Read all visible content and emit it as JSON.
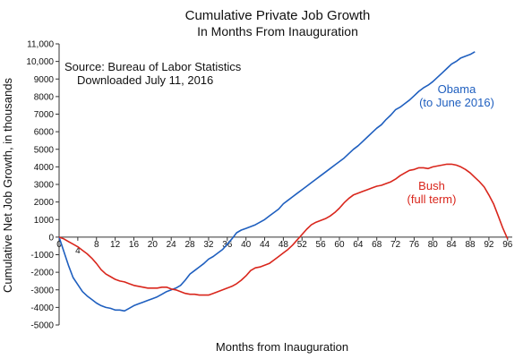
{
  "chart_data": {
    "type": "line",
    "title": "Cumulative Private Job Growth",
    "subtitle": "In Months From Inauguration",
    "xlabel": "Months from Inauguration",
    "ylabel": "Cumulative Net Job Growth, in thousands",
    "xlim": [
      0,
      97
    ],
    "ylim": [
      -5000,
      11000
    ],
    "grid": false,
    "y_ticks": [
      -5000,
      -4000,
      -3000,
      -2000,
      -1000,
      0,
      1000,
      2000,
      3000,
      4000,
      5000,
      6000,
      7000,
      8000,
      9000,
      10000,
      11000
    ],
    "y_tick_labels": [
      "-5000",
      "-4000",
      "-3000",
      "-2000",
      "-1000",
      "0",
      "1000",
      "2000",
      "3000",
      "4000",
      "5000",
      "6000",
      "7000",
      "8000",
      "9000",
      "10,000",
      "11,000"
    ],
    "x_tick_labels": [
      {
        "x": 0,
        "label": "0"
      },
      {
        "x": 4,
        "label": "4"
      },
      {
        "x": 8,
        "label": "8"
      },
      {
        "x": 12,
        "label": "12"
      },
      {
        "x": 16,
        "label": "16"
      },
      {
        "x": 20,
        "label": "20"
      },
      {
        "x": 24,
        "label": "24"
      },
      {
        "x": 28,
        "label": "28"
      },
      {
        "x": 32,
        "label": "32"
      },
      {
        "x": 36,
        "label": "36"
      },
      {
        "x": 40,
        "label": "40"
      },
      {
        "x": 44,
        "label": "44"
      },
      {
        "x": 48,
        "label": "48"
      },
      {
        "x": 52,
        "label": "52"
      },
      {
        "x": 56,
        "label": "56"
      },
      {
        "x": 60,
        "label": "60"
      },
      {
        "x": 64,
        "label": "64"
      },
      {
        "x": 68,
        "label": "68"
      },
      {
        "x": 72,
        "label": "72"
      },
      {
        "x": 76,
        "label": "76"
      },
      {
        "x": 80,
        "label": "80"
      },
      {
        "x": 84,
        "label": "84"
      },
      {
        "x": 88,
        "label": "88"
      },
      {
        "x": 92,
        "label": "92"
      },
      {
        "x": 96,
        "label": "96"
      }
    ],
    "source_note": [
      "Source:  Bureau of Labor Statistics",
      "Downloaded July 11, 2016"
    ],
    "series": [
      {
        "name": "Obama",
        "label_lines": [
          "Obama",
          "(to June 2016)"
        ],
        "color": "#1f5fbf",
        "x": [
          0,
          1,
          2,
          3,
          4,
          5,
          6,
          7,
          8,
          9,
          10,
          11,
          12,
          13,
          14,
          15,
          16,
          17,
          18,
          19,
          20,
          21,
          22,
          23,
          24,
          25,
          26,
          27,
          28,
          29,
          30,
          31,
          32,
          33,
          34,
          35,
          36,
          37,
          38,
          39,
          40,
          41,
          42,
          43,
          44,
          45,
          46,
          47,
          48,
          49,
          50,
          51,
          52,
          53,
          54,
          55,
          56,
          57,
          58,
          59,
          60,
          61,
          62,
          63,
          64,
          65,
          66,
          67,
          68,
          69,
          70,
          71,
          72,
          73,
          74,
          75,
          76,
          77,
          78,
          79,
          80,
          81,
          82,
          83,
          84,
          85,
          86,
          87,
          88,
          89
        ],
        "y": [
          0,
          -800,
          -1600,
          -2300,
          -2700,
          -3100,
          -3350,
          -3550,
          -3750,
          -3900,
          -4000,
          -4050,
          -4150,
          -4150,
          -4200,
          -4050,
          -3900,
          -3800,
          -3700,
          -3600,
          -3500,
          -3400,
          -3250,
          -3100,
          -3000,
          -2900,
          -2750,
          -2450,
          -2100,
          -1900,
          -1700,
          -1500,
          -1250,
          -1100,
          -900,
          -700,
          -400,
          -100,
          250,
          400,
          500,
          600,
          700,
          850,
          1000,
          1200,
          1400,
          1600,
          1900,
          2100,
          2300,
          2500,
          2700,
          2900,
          3100,
          3300,
          3500,
          3700,
          3900,
          4100,
          4300,
          4500,
          4750,
          5000,
          5200,
          5450,
          5700,
          5950,
          6200,
          6400,
          6700,
          6950,
          7250,
          7400,
          7600,
          7800,
          8050,
          8300,
          8500,
          8650,
          8850,
          9100,
          9350,
          9600,
          9850,
          10000,
          10200,
          10300,
          10400,
          10550
        ]
      },
      {
        "name": "Bush",
        "label_lines": [
          "Bush",
          "(full term)"
        ],
        "color": "#d9261c",
        "x": [
          0,
          1,
          2,
          3,
          4,
          5,
          6,
          7,
          8,
          9,
          10,
          11,
          12,
          13,
          14,
          15,
          16,
          17,
          18,
          19,
          20,
          21,
          22,
          23,
          24,
          25,
          26,
          27,
          28,
          29,
          30,
          31,
          32,
          33,
          34,
          35,
          36,
          37,
          38,
          39,
          40,
          41,
          42,
          43,
          44,
          45,
          46,
          47,
          48,
          49,
          50,
          51,
          52,
          53,
          54,
          55,
          56,
          57,
          58,
          59,
          60,
          61,
          62,
          63,
          64,
          65,
          66,
          67,
          68,
          69,
          70,
          71,
          72,
          73,
          74,
          75,
          76,
          77,
          78,
          79,
          80,
          81,
          82,
          83,
          84,
          85,
          86,
          87,
          88,
          89,
          90,
          91,
          92,
          93,
          94,
          95,
          96
        ],
        "y": [
          0,
          -100,
          -250,
          -400,
          -550,
          -750,
          -950,
          -1200,
          -1500,
          -1850,
          -2100,
          -2250,
          -2400,
          -2500,
          -2550,
          -2650,
          -2750,
          -2800,
          -2850,
          -2900,
          -2900,
          -2900,
          -2850,
          -2850,
          -2950,
          -3000,
          -3100,
          -3200,
          -3250,
          -3250,
          -3300,
          -3300,
          -3300,
          -3200,
          -3100,
          -3000,
          -2900,
          -2800,
          -2650,
          -2450,
          -2200,
          -1900,
          -1750,
          -1700,
          -1600,
          -1500,
          -1300,
          -1100,
          -900,
          -700,
          -450,
          -150,
          150,
          450,
          700,
          850,
          950,
          1050,
          1200,
          1400,
          1650,
          1950,
          2200,
          2400,
          2500,
          2600,
          2700,
          2800,
          2900,
          2950,
          3050,
          3150,
          3300,
          3500,
          3650,
          3800,
          3850,
          3950,
          3950,
          3900,
          4000,
          4050,
          4100,
          4150,
          4150,
          4100,
          4000,
          3850,
          3650,
          3400,
          3150,
          2850,
          2400,
          1900,
          1200,
          500,
          -100
        ]
      }
    ]
  }
}
